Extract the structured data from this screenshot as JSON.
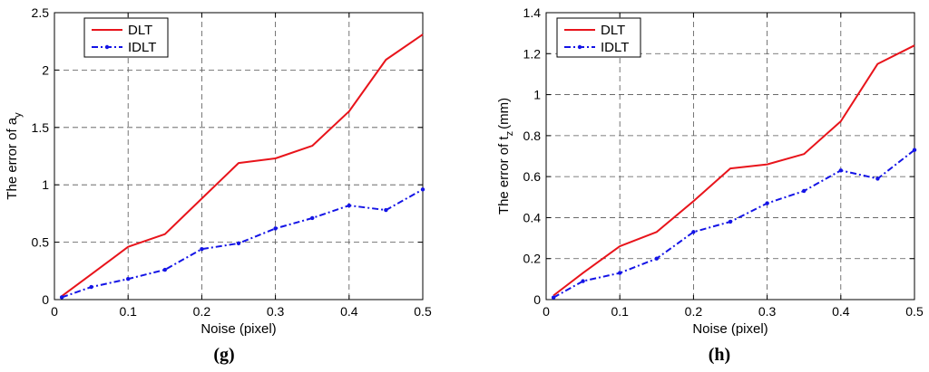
{
  "chart_data": [
    {
      "type": "line",
      "panel_label": "(g)",
      "xlabel": "Noise (pixel)",
      "ylabel_prefix": "The error of  a",
      "ylabel_sub": "y",
      "ylabel_suffix": "",
      "xlim": [
        0,
        0.5
      ],
      "ylim": [
        0,
        2.5
      ],
      "xticks": [
        0,
        0.1,
        0.2,
        0.3,
        0.4,
        0.5
      ],
      "xtick_labels": [
        "0",
        "0.1",
        "0.2",
        "0.3",
        "0.4",
        "0.5"
      ],
      "yticks": [
        0,
        0.5,
        1,
        1.5,
        2,
        2.5
      ],
      "ytick_labels": [
        "0",
        "0.5",
        "1",
        "1.5",
        "2",
        "2.5"
      ],
      "grid": true,
      "legend_position": "top-left",
      "x": [
        0.01,
        0.05,
        0.1,
        0.15,
        0.2,
        0.25,
        0.3,
        0.35,
        0.4,
        0.45,
        0.5
      ],
      "series": [
        {
          "name": "DLT",
          "color": "#e8141b",
          "style": "solid",
          "marker": "none",
          "values": [
            0.03,
            0.22,
            0.46,
            0.57,
            0.88,
            1.19,
            1.23,
            1.34,
            1.64,
            2.09,
            2.31
          ]
        },
        {
          "name": "IDLT",
          "color": "#1414e6",
          "style": "dashdot",
          "marker": "dot",
          "values": [
            0.02,
            0.11,
            0.18,
            0.26,
            0.44,
            0.49,
            0.62,
            0.71,
            0.82,
            0.78,
            0.96
          ]
        }
      ]
    },
    {
      "type": "line",
      "panel_label": "(h)",
      "xlabel": "Noise (pixel)",
      "ylabel_prefix": "The error of  t",
      "ylabel_sub": "z",
      "ylabel_suffix": "(mm)",
      "xlim": [
        0,
        0.5
      ],
      "ylim": [
        0,
        1.4
      ],
      "xticks": [
        0,
        0.1,
        0.2,
        0.3,
        0.4,
        0.5
      ],
      "xtick_labels": [
        "0",
        "0.1",
        "0.2",
        "0.3",
        "0.4",
        "0.5"
      ],
      "yticks": [
        0,
        0.2,
        0.4,
        0.6,
        0.8,
        1,
        1.2,
        1.4
      ],
      "ytick_labels": [
        "0",
        "0.2",
        "0.4",
        "0.6",
        "0.8",
        "1",
        "1.2",
        "1.4"
      ],
      "grid": true,
      "legend_position": "top-left",
      "x": [
        0.01,
        0.05,
        0.1,
        0.15,
        0.2,
        0.25,
        0.3,
        0.35,
        0.4,
        0.45,
        0.5
      ],
      "series": [
        {
          "name": "DLT",
          "color": "#e8141b",
          "style": "solid",
          "marker": "none",
          "values": [
            0.02,
            0.13,
            0.26,
            0.33,
            0.48,
            0.64,
            0.66,
            0.71,
            0.87,
            1.15,
            1.24
          ]
        },
        {
          "name": "IDLT",
          "color": "#1414e6",
          "style": "dashdot",
          "marker": "dot",
          "values": [
            0.01,
            0.09,
            0.13,
            0.2,
            0.33,
            0.38,
            0.47,
            0.53,
            0.63,
            0.59,
            0.73
          ]
        }
      ]
    }
  ]
}
